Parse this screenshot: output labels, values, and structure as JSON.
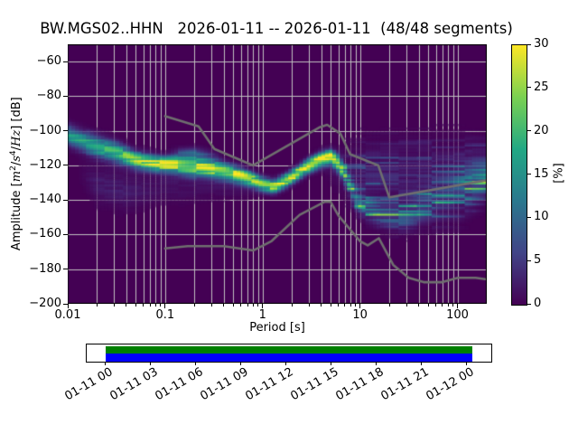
{
  "title": "BW.MGS02..HHN   2026-01-11 -- 2026-01-11  (48/48 segments)",
  "axes": {
    "xlabel": "Period [s]",
    "ylabel": {
      "prefix": "Amplitude [",
      "m": "m",
      "m_exp": "2",
      "sep1": "/",
      "s": "s",
      "s_exp": "4",
      "sep2": "/",
      "hz": "Hz",
      "suffix": "] [dB]"
    },
    "x_tick_values": [
      0.01,
      0.1,
      1,
      10,
      100
    ],
    "x_tick_labels": [
      "0.01",
      "0.1",
      "1",
      "10",
      "100"
    ],
    "y_tick_values": [
      -60,
      -80,
      -100,
      -120,
      -140,
      -160,
      -180,
      -200
    ],
    "y_tick_labels": [
      "−60",
      "−80",
      "−100",
      "−120",
      "−140",
      "−160",
      "−180",
      "−200"
    ]
  },
  "colorbar": {
    "label": "[%]",
    "tick_values": [
      0,
      5,
      10,
      15,
      20,
      25,
      30
    ],
    "tick_labels": [
      "0",
      "5",
      "10",
      "15",
      "20",
      "25",
      "30"
    ],
    "min": 0,
    "max": 30,
    "colormap": "viridis"
  },
  "timeline": {
    "tick_labels": [
      "01-11 00",
      "01-11 03",
      "01-11 06",
      "01-11 09",
      "01-11 12",
      "01-11 15",
      "01-11 18",
      "01-11 21",
      "01-12 00"
    ],
    "coverage_color_top": "#008000",
    "coverage_color_bottom": "#0000ff"
  },
  "colors": {
    "figure_bg": "#ffffff",
    "plot_bg": "#440154",
    "grid": "#c0c0c0",
    "noise_model_line": "#6f6f6f",
    "frame": "#000000",
    "cmap_min": "#440154",
    "cmap_max": "#fde725"
  },
  "chart_data": {
    "type": "heatmap",
    "title": "BW.MGS02..HHN   2026-01-11 -- 2026-01-11  (48/48 segments)",
    "xlabel": "Period [s]",
    "ylabel": "Amplitude [m2/s4/Hz] [dB]",
    "xscale": "log",
    "xlim": [
      0.01,
      200
    ],
    "ylim": [
      -200,
      -50
    ],
    "grid": true,
    "colorbar_range": [
      0,
      30
    ],
    "colorbar_label": "[%]",
    "segments_used": 48,
    "segments_total": 48,
    "psd_mode_curve": {
      "comment": "highest-probability PSD ridge read from the plot",
      "periods_s": [
        0.01,
        0.015,
        0.02,
        0.03,
        0.05,
        0.08,
        0.1,
        0.14,
        0.18,
        0.25,
        0.4,
        0.6,
        0.8,
        1.0,
        1.3,
        1.7,
        2.3,
        3.0,
        4.0,
        5.0,
        5.9,
        6.8,
        7.5,
        8.3,
        9.2,
        11.3,
        15.5,
        22,
        30,
        45,
        70,
        100,
        140,
        200
      ],
      "db": [
        -102.5,
        -106.5,
        -109,
        -112,
        -117,
        -119,
        -119.5,
        -120,
        -120.7,
        -121.5,
        -123.5,
        -126,
        -128.5,
        -131,
        -132.2,
        -129,
        -124.4,
        -120,
        -116.5,
        -115.2,
        -118.4,
        -123.6,
        -128.8,
        -134,
        -139.2,
        -144.4,
        -147.9,
        -149.5,
        -149,
        -144.5,
        -140,
        -136,
        -131.5,
        -127.5
      ]
    },
    "noise_models": {
      "high_nhnm": [
        [
          0.1,
          -91.5
        ],
        [
          0.22,
          -97.4
        ],
        [
          0.32,
          -110.5
        ],
        [
          0.8,
          -120.0
        ],
        [
          3.8,
          -98.1
        ],
        [
          4.6,
          -96.5
        ],
        [
          6.3,
          -101.7
        ],
        [
          7.9,
          -113.5
        ],
        [
          15.4,
          -120.0
        ],
        [
          20.0,
          -138.5
        ],
        [
          200.0,
          -128.6
        ]
      ],
      "low_nlnm": [
        [
          0.1,
          -168.0
        ],
        [
          0.17,
          -166.7
        ],
        [
          0.4,
          -166.7
        ],
        [
          0.8,
          -169.2
        ],
        [
          1.24,
          -163.7
        ],
        [
          2.4,
          -148.6
        ],
        [
          4.3,
          -141.1
        ],
        [
          5.0,
          -141.1
        ],
        [
          6.0,
          -149.0
        ],
        [
          10.0,
          -163.8
        ],
        [
          12.0,
          -166.2
        ],
        [
          15.6,
          -162.1
        ],
        [
          21.9,
          -177.5
        ],
        [
          31.6,
          -185.0
        ],
        [
          45.0,
          -187.5
        ],
        [
          70.0,
          -187.5
        ],
        [
          101.0,
          -185.0
        ],
        [
          154.0,
          -185.0
        ],
        [
          200.0,
          -185.9
        ]
      ]
    },
    "density_components": {
      "comment": "anchors [period_s, center_dB, spread_dB, peak_percent] linearly interpolated in log10(period)",
      "main_ridge": [
        [
          0.01,
          -102.5,
          4.0,
          16
        ],
        [
          0.015,
          -106.5,
          4.0,
          17
        ],
        [
          0.02,
          -109,
          4.0,
          18
        ],
        [
          0.03,
          -112,
          4.0,
          18
        ],
        [
          0.05,
          -117,
          3.2,
          24
        ],
        [
          0.08,
          -119,
          3.0,
          27
        ],
        [
          0.1,
          -119.5,
          3.0,
          28
        ],
        [
          0.14,
          -120,
          3.2,
          26
        ],
        [
          0.18,
          -120.7,
          3.5,
          24
        ],
        [
          0.25,
          -121.5,
          3.5,
          26
        ],
        [
          0.4,
          -123.5,
          3.2,
          28
        ],
        [
          0.6,
          -126,
          3.0,
          28
        ],
        [
          0.8,
          -128.5,
          2.8,
          27
        ],
        [
          1.0,
          -131,
          2.6,
          26
        ],
        [
          1.3,
          -132.2,
          2.5,
          26
        ],
        [
          1.7,
          -129,
          2.5,
          28
        ],
        [
          2.3,
          -124.4,
          2.5,
          30
        ],
        [
          3.0,
          -120,
          2.6,
          30
        ],
        [
          4.0,
          -116.5,
          2.8,
          30
        ],
        [
          5.0,
          -115.2,
          2.8,
          30
        ],
        [
          5.9,
          -118.4,
          3.0,
          26
        ],
        [
          6.8,
          -123.6,
          3.2,
          20
        ],
        [
          7.5,
          -128.8,
          3.5,
          16
        ],
        [
          8.3,
          -134,
          4.0,
          13
        ],
        [
          9.2,
          -139.2,
          4.5,
          11
        ],
        [
          11.3,
          -144.4,
          4.5,
          10
        ],
        [
          15.5,
          -147.9,
          4.5,
          10
        ],
        [
          22.0,
          -149.5,
          5.0,
          10
        ],
        [
          30.0,
          -149,
          5.5,
          9
        ],
        [
          45.0,
          -144.5,
          6.5,
          7
        ],
        [
          70.0,
          -140,
          8.0,
          6
        ],
        [
          100.0,
          -136,
          9.0,
          6
        ],
        [
          140.0,
          -131.5,
          8.0,
          8
        ],
        [
          200.0,
          -127.5,
          6.0,
          11
        ]
      ],
      "long_period_cloud": [
        [
          4,
          -122,
          6,
          0
        ],
        [
          6,
          -122,
          8,
          2
        ],
        [
          8,
          -124,
          10,
          3
        ],
        [
          12,
          -125,
          12,
          4
        ],
        [
          20,
          -126,
          13,
          4
        ],
        [
          40,
          -126,
          13,
          4
        ],
        [
          80,
          -125,
          12,
          4
        ],
        [
          140,
          -124,
          11,
          5
        ],
        [
          200,
          -123,
          10,
          5
        ]
      ],
      "upper_blob": [
        [
          0.1,
          -114,
          2.5,
          0
        ],
        [
          0.14,
          -113.5,
          2.5,
          6
        ],
        [
          0.2,
          -113.5,
          2.5,
          9
        ],
        [
          0.28,
          -114.5,
          2.5,
          5
        ],
        [
          0.4,
          -116,
          2.5,
          0
        ]
      ],
      "low_tail": [
        [
          0.012,
          -122,
          6,
          0
        ],
        [
          0.02,
          -131,
          7,
          3
        ],
        [
          0.04,
          -135,
          7,
          3
        ],
        [
          0.08,
          -133,
          6,
          2
        ],
        [
          0.15,
          -132,
          6,
          2
        ],
        [
          0.3,
          -131,
          5,
          2
        ],
        [
          0.6,
          -133,
          4,
          1.5
        ],
        [
          1.0,
          -136,
          3,
          0
        ]
      ]
    }
  }
}
